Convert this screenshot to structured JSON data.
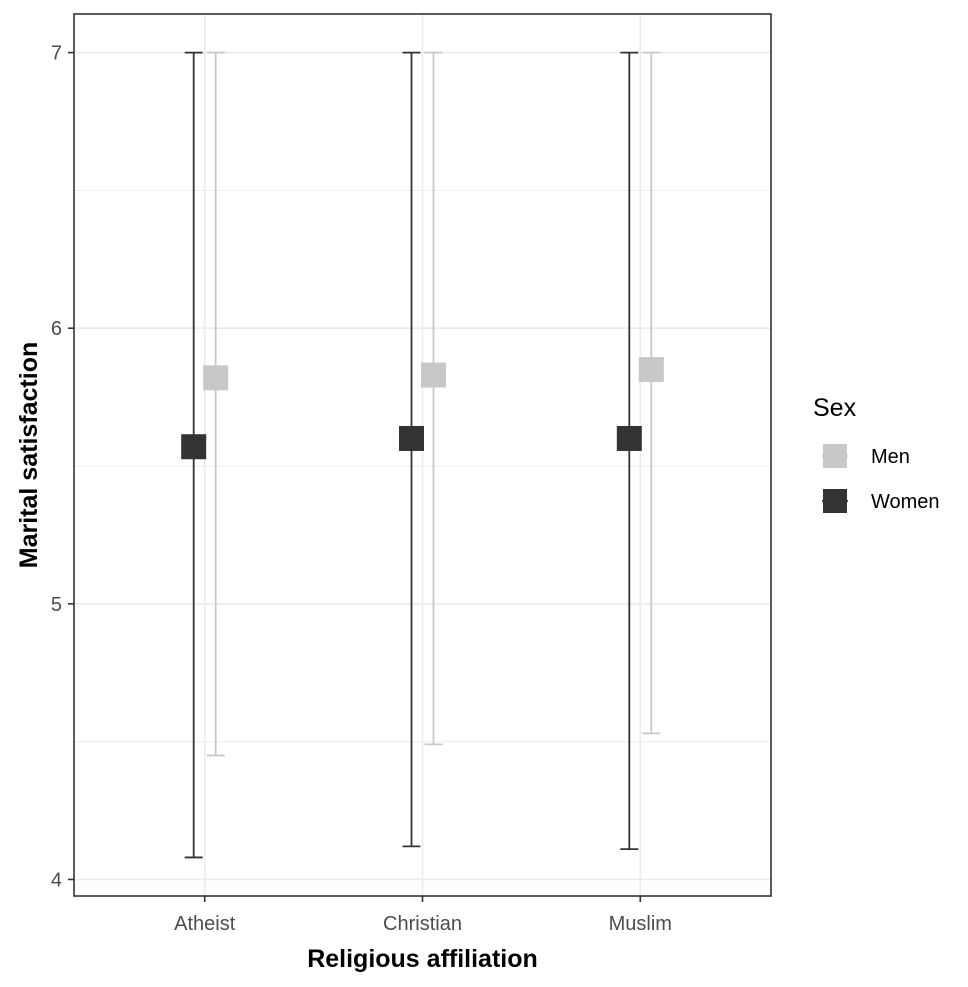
{
  "chart_data": {
    "type": "scatter",
    "subtype": "point-with-errorbars",
    "title": "",
    "xlabel": "Religious affiliation",
    "ylabel": "Marital satisfaction",
    "categories": [
      "Atheist",
      "Christian",
      "Muslim"
    ],
    "ylim": [
      3.94,
      7.14
    ],
    "yticks": [
      4,
      5,
      6,
      7
    ],
    "grid": true,
    "legend": {
      "title": "Sex",
      "placement": "right",
      "entries": [
        "Men",
        "Women"
      ]
    },
    "series": [
      {
        "name": "Women",
        "color": "#333333",
        "values": [
          5.57,
          5.6,
          5.6
        ],
        "lower": [
          4.08,
          4.12,
          4.11
        ],
        "upper": [
          7.0,
          7.0,
          7.0
        ]
      },
      {
        "name": "Men",
        "color": "#c8c8c8",
        "values": [
          5.82,
          5.83,
          5.85
        ],
        "lower": [
          4.45,
          4.49,
          4.53
        ],
        "upper": [
          7.0,
          7.0,
          7.0
        ]
      }
    ]
  }
}
